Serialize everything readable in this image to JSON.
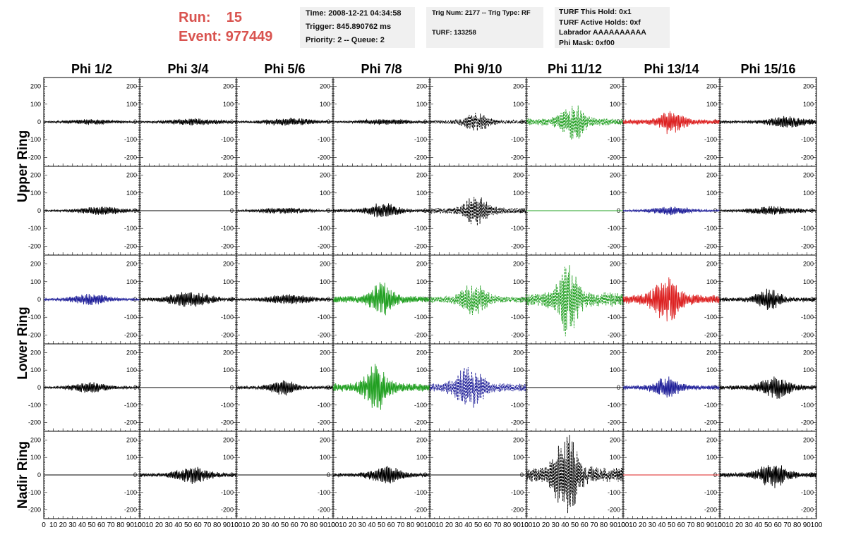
{
  "run": {
    "run_label": "Run:",
    "run_value": "15",
    "event_label": "Event:",
    "event_value": "977449"
  },
  "header": {
    "time": "Time: 2008-12-21 04:34:58",
    "trigger": "Trigger: 845.890762 ms",
    "priority": "Priority: 2 -- Queue: 2",
    "trig_num": "Trig Num: 2177 -- Trig Type: RF",
    "turf": "TURF: 133258",
    "turf_hold": "TURF This Hold: 0x1",
    "turf_active": "TURF Active Holds: 0xf",
    "labrador": "Labrador AAAAAAAAAA",
    "phi_mask": "Phi Mask: 0xf00"
  },
  "colors": {
    "black": "#000000",
    "green": "#22a022",
    "red": "#dd2222",
    "blue": "#1f1f99",
    "accent": "#d9534f"
  },
  "chart_data": {
    "type": "line",
    "columns": [
      "Phi 1/2",
      "Phi 3/4",
      "Phi 5/6",
      "Phi 7/8",
      "Phi 9/10",
      "Phi 11/12",
      "Phi 13/14",
      "Phi 15/16"
    ],
    "rows": [
      "Upper Ring",
      "",
      "Lower Ring",
      "",
      "Nadir Ring"
    ],
    "xlim": [
      0,
      100
    ],
    "ylim": [
      -250,
      250
    ],
    "y_ticks": [
      -200,
      -100,
      0,
      100,
      200
    ],
    "x_tick_labels": [
      "0",
      "10",
      "20",
      "30",
      "40",
      "50",
      "60",
      "70",
      "80",
      "90",
      "100"
    ],
    "panels": [
      [
        {
          "color": "black",
          "style": "solid",
          "amp": 14,
          "center": 50,
          "width": 30
        },
        {
          "color": "black",
          "style": "solid",
          "amp": 18,
          "center": 55,
          "width": 30
        },
        {
          "color": "black",
          "style": "solid",
          "amp": 20,
          "center": 55,
          "width": 28
        },
        {
          "color": "black",
          "style": "solid",
          "amp": 14,
          "center": 55,
          "width": 32
        },
        {
          "color": "black",
          "style": "dashed",
          "amp": 45,
          "center": 48,
          "width": 15
        },
        {
          "color": "green",
          "style": "dashed",
          "amp": 95,
          "center": 48,
          "width": 13
        },
        {
          "color": "red",
          "style": "solid",
          "amp": 65,
          "center": 50,
          "width": 13
        },
        {
          "color": "black",
          "style": "solid",
          "amp": 30,
          "center": 70,
          "width": 22
        }
      ],
      [
        {
          "color": "black",
          "style": "solid",
          "amp": 22,
          "center": 60,
          "width": 25
        },
        {
          "color": "black",
          "style": "flat"
        },
        {
          "color": "black",
          "style": "solid",
          "amp": 15,
          "center": 50,
          "width": 30
        },
        {
          "color": "black",
          "style": "solid",
          "amp": 40,
          "center": 52,
          "width": 16
        },
        {
          "color": "black",
          "style": "dashed",
          "amp": 75,
          "center": 48,
          "width": 14
        },
        {
          "color": "green",
          "style": "flat"
        },
        {
          "color": "blue",
          "style": "solid",
          "amp": 22,
          "center": 50,
          "width": 22
        },
        {
          "color": "black",
          "style": "solid",
          "amp": 22,
          "center": 55,
          "width": 28
        }
      ],
      [
        {
          "color": "blue",
          "style": "solid",
          "amp": 30,
          "center": 48,
          "width": 20
        },
        {
          "color": "black",
          "style": "solid",
          "amp": 38,
          "center": 52,
          "width": 24
        },
        {
          "color": "black",
          "style": "solid",
          "amp": 28,
          "center": 55,
          "width": 25
        },
        {
          "color": "green",
          "style": "solid",
          "amp": 90,
          "center": 50,
          "width": 12
        },
        {
          "color": "green",
          "style": "dashed",
          "amp": 80,
          "center": 45,
          "width": 15
        },
        {
          "color": "green",
          "style": "dashed",
          "amp": 185,
          "center": 42,
          "width": 12
        },
        {
          "color": "red",
          "style": "solid",
          "amp": 115,
          "center": 45,
          "width": 16
        },
        {
          "color": "black",
          "style": "solid",
          "amp": 55,
          "center": 50,
          "width": 14
        }
      ],
      [
        {
          "color": "black",
          "style": "solid",
          "amp": 28,
          "center": 48,
          "width": 20
        },
        {
          "color": "black",
          "style": "flat"
        },
        {
          "color": "black",
          "style": "solid",
          "amp": 40,
          "center": 48,
          "width": 14
        },
        {
          "color": "green",
          "style": "solid",
          "amp": 115,
          "center": 45,
          "width": 13
        },
        {
          "color": "blue",
          "style": "dashed",
          "amp": 110,
          "center": 40,
          "width": 16
        },
        {
          "color": "black",
          "style": "flat"
        },
        {
          "color": "blue",
          "style": "solid",
          "amp": 55,
          "center": 45,
          "width": 14
        },
        {
          "color": "black",
          "style": "solid",
          "amp": 55,
          "center": 58,
          "width": 18
        }
      ],
      [
        {
          "color": "black",
          "style": "flat"
        },
        {
          "color": "black",
          "style": "solid",
          "amp": 45,
          "center": 55,
          "width": 18
        },
        {
          "color": "black",
          "style": "flat"
        },
        {
          "color": "black",
          "style": "solid",
          "amp": 45,
          "center": 55,
          "width": 18
        },
        {
          "color": "black",
          "style": "flat"
        },
        {
          "color": "black",
          "style": "dashed",
          "amp": 200,
          "center": 42,
          "width": 14
        },
        {
          "color": "red",
          "style": "flat"
        },
        {
          "color": "black",
          "style": "solid",
          "amp": 65,
          "center": 55,
          "width": 15
        }
      ]
    ]
  }
}
